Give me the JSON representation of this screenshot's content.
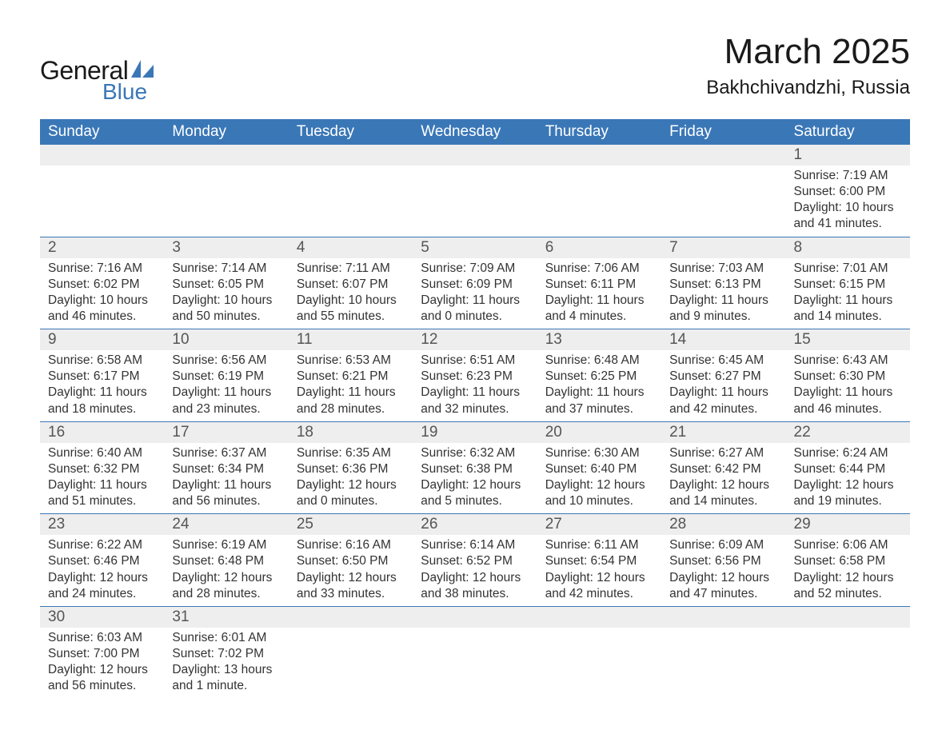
{
  "brand": {
    "name_part1": "General",
    "name_part2": "Blue",
    "logo_sail_color": "#3a77b7",
    "text_color_dark": "#1a1a1a",
    "text_color_blue": "#3a77b7"
  },
  "title": {
    "month_year": "March 2025",
    "location": "Bakhchivandzhi, Russia",
    "month_fontsize": 44,
    "location_fontsize": 24
  },
  "colors": {
    "header_bg": "#3a77b7",
    "header_text": "#ffffff",
    "daynum_bg": "#eeeeee",
    "daynum_text": "#555555",
    "body_text": "#333333",
    "row_border": "#3a77b7",
    "page_bg": "#ffffff"
  },
  "typography": {
    "header_fontsize": 19,
    "daynum_fontsize": 19,
    "content_fontsize": 15.5,
    "font_family": "Arial"
  },
  "calendar": {
    "type": "table",
    "columns": [
      "Sunday",
      "Monday",
      "Tuesday",
      "Wednesday",
      "Thursday",
      "Friday",
      "Saturday"
    ],
    "weeks": [
      [
        {
          "day": "",
          "sunrise": "",
          "sunset": "",
          "daylight1": "",
          "daylight2": ""
        },
        {
          "day": "",
          "sunrise": "",
          "sunset": "",
          "daylight1": "",
          "daylight2": ""
        },
        {
          "day": "",
          "sunrise": "",
          "sunset": "",
          "daylight1": "",
          "daylight2": ""
        },
        {
          "day": "",
          "sunrise": "",
          "sunset": "",
          "daylight1": "",
          "daylight2": ""
        },
        {
          "day": "",
          "sunrise": "",
          "sunset": "",
          "daylight1": "",
          "daylight2": ""
        },
        {
          "day": "",
          "sunrise": "",
          "sunset": "",
          "daylight1": "",
          "daylight2": ""
        },
        {
          "day": "1",
          "sunrise": "Sunrise: 7:19 AM",
          "sunset": "Sunset: 6:00 PM",
          "daylight1": "Daylight: 10 hours",
          "daylight2": "and 41 minutes."
        }
      ],
      [
        {
          "day": "2",
          "sunrise": "Sunrise: 7:16 AM",
          "sunset": "Sunset: 6:02 PM",
          "daylight1": "Daylight: 10 hours",
          "daylight2": "and 46 minutes."
        },
        {
          "day": "3",
          "sunrise": "Sunrise: 7:14 AM",
          "sunset": "Sunset: 6:05 PM",
          "daylight1": "Daylight: 10 hours",
          "daylight2": "and 50 minutes."
        },
        {
          "day": "4",
          "sunrise": "Sunrise: 7:11 AM",
          "sunset": "Sunset: 6:07 PM",
          "daylight1": "Daylight: 10 hours",
          "daylight2": "and 55 minutes."
        },
        {
          "day": "5",
          "sunrise": "Sunrise: 7:09 AM",
          "sunset": "Sunset: 6:09 PM",
          "daylight1": "Daylight: 11 hours",
          "daylight2": "and 0 minutes."
        },
        {
          "day": "6",
          "sunrise": "Sunrise: 7:06 AM",
          "sunset": "Sunset: 6:11 PM",
          "daylight1": "Daylight: 11 hours",
          "daylight2": "and 4 minutes."
        },
        {
          "day": "7",
          "sunrise": "Sunrise: 7:03 AM",
          "sunset": "Sunset: 6:13 PM",
          "daylight1": "Daylight: 11 hours",
          "daylight2": "and 9 minutes."
        },
        {
          "day": "8",
          "sunrise": "Sunrise: 7:01 AM",
          "sunset": "Sunset: 6:15 PM",
          "daylight1": "Daylight: 11 hours",
          "daylight2": "and 14 minutes."
        }
      ],
      [
        {
          "day": "9",
          "sunrise": "Sunrise: 6:58 AM",
          "sunset": "Sunset: 6:17 PM",
          "daylight1": "Daylight: 11 hours",
          "daylight2": "and 18 minutes."
        },
        {
          "day": "10",
          "sunrise": "Sunrise: 6:56 AM",
          "sunset": "Sunset: 6:19 PM",
          "daylight1": "Daylight: 11 hours",
          "daylight2": "and 23 minutes."
        },
        {
          "day": "11",
          "sunrise": "Sunrise: 6:53 AM",
          "sunset": "Sunset: 6:21 PM",
          "daylight1": "Daylight: 11 hours",
          "daylight2": "and 28 minutes."
        },
        {
          "day": "12",
          "sunrise": "Sunrise: 6:51 AM",
          "sunset": "Sunset: 6:23 PM",
          "daylight1": "Daylight: 11 hours",
          "daylight2": "and 32 minutes."
        },
        {
          "day": "13",
          "sunrise": "Sunrise: 6:48 AM",
          "sunset": "Sunset: 6:25 PM",
          "daylight1": "Daylight: 11 hours",
          "daylight2": "and 37 minutes."
        },
        {
          "day": "14",
          "sunrise": "Sunrise: 6:45 AM",
          "sunset": "Sunset: 6:27 PM",
          "daylight1": "Daylight: 11 hours",
          "daylight2": "and 42 minutes."
        },
        {
          "day": "15",
          "sunrise": "Sunrise: 6:43 AM",
          "sunset": "Sunset: 6:30 PM",
          "daylight1": "Daylight: 11 hours",
          "daylight2": "and 46 minutes."
        }
      ],
      [
        {
          "day": "16",
          "sunrise": "Sunrise: 6:40 AM",
          "sunset": "Sunset: 6:32 PM",
          "daylight1": "Daylight: 11 hours",
          "daylight2": "and 51 minutes."
        },
        {
          "day": "17",
          "sunrise": "Sunrise: 6:37 AM",
          "sunset": "Sunset: 6:34 PM",
          "daylight1": "Daylight: 11 hours",
          "daylight2": "and 56 minutes."
        },
        {
          "day": "18",
          "sunrise": "Sunrise: 6:35 AM",
          "sunset": "Sunset: 6:36 PM",
          "daylight1": "Daylight: 12 hours",
          "daylight2": "and 0 minutes."
        },
        {
          "day": "19",
          "sunrise": "Sunrise: 6:32 AM",
          "sunset": "Sunset: 6:38 PM",
          "daylight1": "Daylight: 12 hours",
          "daylight2": "and 5 minutes."
        },
        {
          "day": "20",
          "sunrise": "Sunrise: 6:30 AM",
          "sunset": "Sunset: 6:40 PM",
          "daylight1": "Daylight: 12 hours",
          "daylight2": "and 10 minutes."
        },
        {
          "day": "21",
          "sunrise": "Sunrise: 6:27 AM",
          "sunset": "Sunset: 6:42 PM",
          "daylight1": "Daylight: 12 hours",
          "daylight2": "and 14 minutes."
        },
        {
          "day": "22",
          "sunrise": "Sunrise: 6:24 AM",
          "sunset": "Sunset: 6:44 PM",
          "daylight1": "Daylight: 12 hours",
          "daylight2": "and 19 minutes."
        }
      ],
      [
        {
          "day": "23",
          "sunrise": "Sunrise: 6:22 AM",
          "sunset": "Sunset: 6:46 PM",
          "daylight1": "Daylight: 12 hours",
          "daylight2": "and 24 minutes."
        },
        {
          "day": "24",
          "sunrise": "Sunrise: 6:19 AM",
          "sunset": "Sunset: 6:48 PM",
          "daylight1": "Daylight: 12 hours",
          "daylight2": "and 28 minutes."
        },
        {
          "day": "25",
          "sunrise": "Sunrise: 6:16 AM",
          "sunset": "Sunset: 6:50 PM",
          "daylight1": "Daylight: 12 hours",
          "daylight2": "and 33 minutes."
        },
        {
          "day": "26",
          "sunrise": "Sunrise: 6:14 AM",
          "sunset": "Sunset: 6:52 PM",
          "daylight1": "Daylight: 12 hours",
          "daylight2": "and 38 minutes."
        },
        {
          "day": "27",
          "sunrise": "Sunrise: 6:11 AM",
          "sunset": "Sunset: 6:54 PM",
          "daylight1": "Daylight: 12 hours",
          "daylight2": "and 42 minutes."
        },
        {
          "day": "28",
          "sunrise": "Sunrise: 6:09 AM",
          "sunset": "Sunset: 6:56 PM",
          "daylight1": "Daylight: 12 hours",
          "daylight2": "and 47 minutes."
        },
        {
          "day": "29",
          "sunrise": "Sunrise: 6:06 AM",
          "sunset": "Sunset: 6:58 PM",
          "daylight1": "Daylight: 12 hours",
          "daylight2": "and 52 minutes."
        }
      ],
      [
        {
          "day": "30",
          "sunrise": "Sunrise: 6:03 AM",
          "sunset": "Sunset: 7:00 PM",
          "daylight1": "Daylight: 12 hours",
          "daylight2": "and 56 minutes."
        },
        {
          "day": "31",
          "sunrise": "Sunrise: 6:01 AM",
          "sunset": "Sunset: 7:02 PM",
          "daylight1": "Daylight: 13 hours",
          "daylight2": "and 1 minute."
        },
        {
          "day": "",
          "sunrise": "",
          "sunset": "",
          "daylight1": "",
          "daylight2": ""
        },
        {
          "day": "",
          "sunrise": "",
          "sunset": "",
          "daylight1": "",
          "daylight2": ""
        },
        {
          "day": "",
          "sunrise": "",
          "sunset": "",
          "daylight1": "",
          "daylight2": ""
        },
        {
          "day": "",
          "sunrise": "",
          "sunset": "",
          "daylight1": "",
          "daylight2": ""
        },
        {
          "day": "",
          "sunrise": "",
          "sunset": "",
          "daylight1": "",
          "daylight2": ""
        }
      ]
    ]
  }
}
